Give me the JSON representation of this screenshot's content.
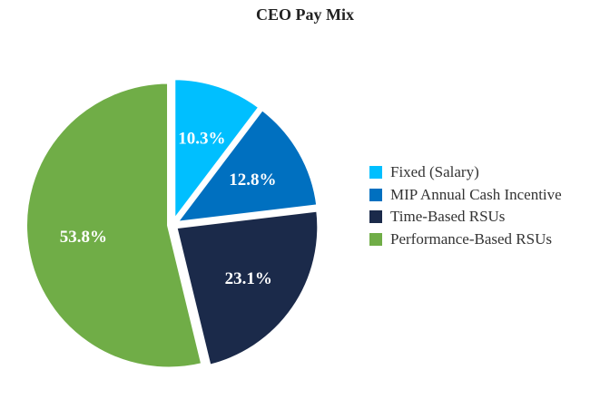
{
  "chart_data": {
    "type": "pie",
    "title": "CEO Pay Mix",
    "slices": [
      {
        "label": "Fixed (Salary)",
        "value": 10.3,
        "display": "10.3%",
        "color": "#00BFFF"
      },
      {
        "label": "MIP Annual Cash Incentive",
        "value": 12.8,
        "display": "12.8%",
        "color": "#0070C0"
      },
      {
        "label": "Time-Based RSUs",
        "value": 23.1,
        "display": "23.1%",
        "color": "#1B2A4A"
      },
      {
        "label": "Performance-Based RSUs",
        "value": 53.8,
        "display": "53.8%",
        "color": "#70AD47"
      }
    ],
    "legend_position": "right"
  }
}
